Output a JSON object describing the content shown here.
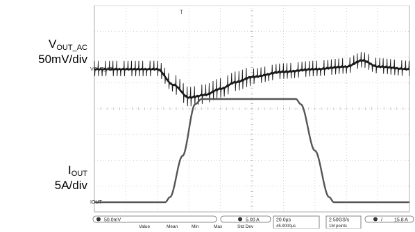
{
  "side_labels": {
    "vout_main": "V",
    "vout_sub": "OUT_AC",
    "vout_scale": "50mV/div",
    "iout_main": "I",
    "iout_sub": "OUT",
    "iout_scale": "5A/div"
  },
  "scope": {
    "ch1_marker": "VOUT_AC",
    "ch2_marker": "IOUT",
    "ch1_scale_readout": "50.0mV",
    "ch2_scale_readout": "5.00 A",
    "timebase_readout": "20.0µs",
    "position_readout": "45.9000µs",
    "sample_rate_readout": "2.50GS/s",
    "record_length_readout": "1M points",
    "trigger_readout": "15.8 A",
    "measure_headers": [
      "Value",
      "Mean",
      "Min",
      "Max",
      "Std Dev"
    ]
  },
  "colors": {
    "trace": "#1a1a1a",
    "current_trace": "#555555",
    "grid": "#c4c4c4",
    "background": "#ffffff"
  },
  "chart_data": [
    {
      "type": "line",
      "title": "",
      "series": [
        {
          "name": "VOUT_AC",
          "x": [
            0,
            20,
            40,
            50,
            60,
            70,
            80,
            90,
            100,
            120,
            140,
            160,
            170,
            180,
            200
          ],
          "values": [
            0,
            0,
            0,
            -30,
            -55,
            -50,
            -38,
            -25,
            -15,
            -5,
            0,
            5,
            17,
            5,
            0
          ],
          "ripple_pp": 30
        }
      ],
      "xlabel": "",
      "ylabel": "",
      "x_units": "µs",
      "y_units": "mV",
      "xlim": [
        0,
        200
      ],
      "ylim": [
        -100,
        100
      ],
      "x_per_div": 20,
      "y_per_div": 50,
      "grid": true
    },
    {
      "type": "line",
      "title": "",
      "series": [
        {
          "name": "IOUT",
          "x": [
            0,
            45,
            48,
            56,
            64,
            68,
            128,
            131,
            140,
            149,
            152,
            200
          ],
          "values": [
            0,
            0,
            1,
            9,
            19,
            20,
            20,
            19,
            10,
            1,
            0,
            0
          ]
        }
      ],
      "xlabel": "",
      "ylabel": "",
      "x_units": "µs",
      "y_units": "A",
      "xlim": [
        0,
        200
      ],
      "ylim": [
        -5,
        25
      ],
      "x_per_div": 20,
      "y_per_div": 5,
      "grid": true
    }
  ]
}
